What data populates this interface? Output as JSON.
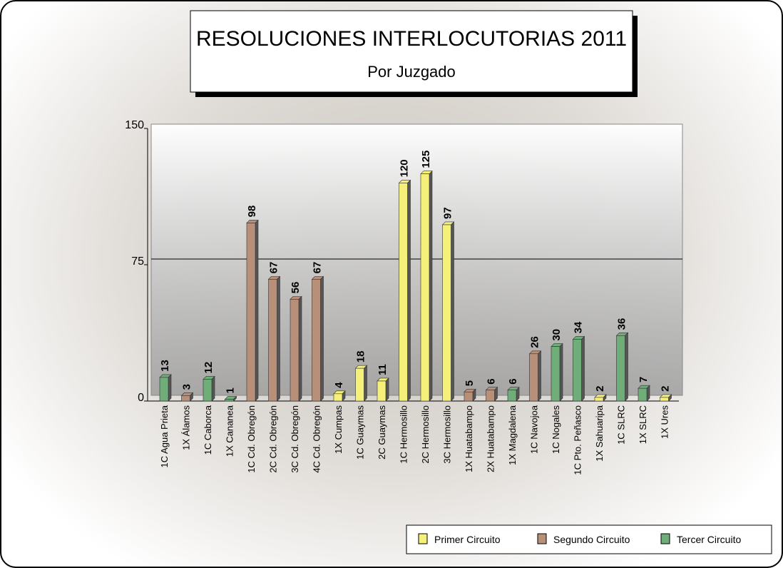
{
  "chart_data": {
    "type": "bar",
    "title": "RESOLUCIONES INTERLOCUTORIAS 2011",
    "subtitle": "Por Juzgado",
    "categories": [
      "1C Agua Prieta",
      "1X Álamos",
      "1C Caborca",
      "1X Cananea",
      "1C Cd. Obregón",
      "2C Cd. Obregón",
      "3C Cd. Obregón",
      "4C Cd. Obregón",
      "1X Cumpas",
      "1C Guaymas",
      "2C Guaymas",
      "1C Hermosillo",
      "2C Hermosillo",
      "3C Hermosillo",
      "1X Huatabampo",
      "2X Huatabampo",
      "1X Magdalena",
      "1C Navojoa",
      "1C Nogales",
      "1C Pto. Peñasco",
      "1X Sahuaripa",
      "1C SLRC",
      "1X SLRC",
      "1X Ures"
    ],
    "series": [
      {
        "name": "Primer Circuito",
        "color": "#f5f07a",
        "values": [
          null,
          null,
          null,
          null,
          null,
          null,
          null,
          null,
          4,
          18,
          11,
          120,
          125,
          97,
          null,
          null,
          null,
          null,
          null,
          null,
          2,
          null,
          null,
          2
        ]
      },
      {
        "name": "Segundo Circuito",
        "color": "#b8907a",
        "values": [
          null,
          3,
          null,
          null,
          98,
          67,
          56,
          67,
          null,
          null,
          null,
          null,
          null,
          null,
          5,
          6,
          null,
          26,
          null,
          null,
          null,
          null,
          null,
          null
        ]
      },
      {
        "name": "Tercer Circuito",
        "color": "#6fae78",
        "values": [
          13,
          null,
          12,
          1,
          null,
          null,
          null,
          null,
          null,
          null,
          null,
          null,
          null,
          null,
          null,
          null,
          6,
          null,
          30,
          34,
          null,
          36,
          7,
          null
        ]
      }
    ],
    "ylim": [
      0,
      150
    ],
    "yticks": [
      0,
      75,
      150
    ],
    "grid": true,
    "legend": "bottom-right"
  }
}
